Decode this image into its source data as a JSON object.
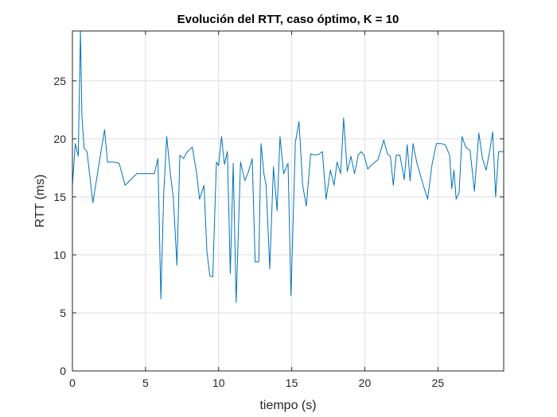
{
  "chart_data": {
    "type": "line",
    "title": "Evolución del RTT, caso óptimo, K = 10",
    "xlabel": "tiempo (s)",
    "ylabel": "RTT (ms)",
    "xlim": [
      0,
      29.5
    ],
    "ylim": [
      0,
      29.3
    ],
    "xticks": [
      0,
      5,
      10,
      15,
      20,
      25
    ],
    "yticks": [
      0,
      5,
      10,
      15,
      20,
      25
    ],
    "grid": true,
    "line_color": "#0072BD",
    "series": [
      {
        "x": [
          0,
          0.2,
          0.4,
          0.55,
          0.65,
          0.8,
          1.0,
          1.4,
          1.8,
          2.2,
          2.4,
          2.8,
          3.2,
          3.6,
          4.0,
          4.4,
          4.8,
          5.2,
          5.6,
          5.85,
          6.05,
          6.25,
          6.45,
          6.7,
          6.9,
          7.15,
          7.35,
          7.6,
          7.8,
          8.2,
          8.5,
          8.7,
          9.0,
          9.2,
          9.4,
          9.6,
          9.85,
          10.0,
          10.2,
          10.4,
          10.6,
          10.8,
          11.0,
          11.2,
          11.5,
          11.8,
          12.05,
          12.3,
          12.5,
          12.75,
          12.9,
          13.1,
          13.25,
          13.5,
          13.75,
          14.0,
          14.2,
          14.45,
          14.75,
          14.95,
          15.25,
          15.5,
          15.75,
          16.0,
          16.3,
          16.6,
          16.9,
          17.1,
          17.35,
          17.65,
          17.9,
          18.1,
          18.35,
          18.55,
          18.8,
          19.05,
          19.3,
          19.55,
          19.75,
          19.95,
          20.2,
          20.5,
          20.9,
          21.3,
          21.55,
          21.75,
          21.95,
          22.15,
          22.4,
          22.7,
          22.9,
          23.1,
          23.3,
          23.55,
          24.0,
          24.3,
          24.6,
          24.9,
          25.2,
          25.5,
          25.8,
          25.95,
          26.1,
          26.25,
          26.45,
          26.65,
          26.9,
          27.2,
          27.5,
          27.8,
          28.05,
          28.3,
          28.55,
          28.75,
          28.95,
          29.15,
          29.3,
          29.5
        ],
        "values": [
          16.0,
          19.6,
          18.5,
          29.3,
          22.0,
          19.2,
          18.9,
          14.5,
          17.7,
          20.8,
          18.0,
          18.0,
          17.9,
          16.0,
          16.5,
          17.0,
          17.0,
          17.0,
          17.0,
          18.3,
          6.2,
          15.4,
          20.2,
          17.0,
          15.0,
          9.1,
          18.6,
          18.3,
          18.8,
          19.3,
          17.0,
          14.8,
          16.0,
          10.3,
          8.2,
          8.1,
          18.0,
          17.7,
          20.2,
          17.8,
          18.9,
          8.4,
          17.9,
          5.9,
          18.0,
          16.4,
          17.2,
          18.3,
          9.4,
          9.4,
          19.6,
          17.0,
          16.0,
          8.8,
          17.6,
          13.8,
          20.2,
          17.0,
          17.9,
          6.5,
          19.7,
          21.5,
          16.0,
          14.2,
          18.7,
          18.6,
          18.7,
          18.9,
          14.8,
          17.3,
          16.0,
          18.0,
          17.0,
          21.8,
          17.2,
          18.5,
          17.0,
          18.6,
          18.9,
          18.6,
          17.4,
          17.8,
          18.2,
          19.9,
          18.7,
          18.5,
          16.0,
          18.6,
          18.6,
          16.5,
          19.5,
          16.4,
          19.6,
          18.0,
          16.0,
          14.8,
          17.8,
          19.6,
          19.6,
          19.5,
          18.6,
          15.7,
          17.3,
          14.8,
          15.4,
          20.2,
          19.3,
          19.0,
          15.5,
          20.5,
          18.3,
          17.3,
          19.0,
          20.6,
          15.0,
          18.9,
          18.9,
          18.9
        ]
      }
    ]
  }
}
